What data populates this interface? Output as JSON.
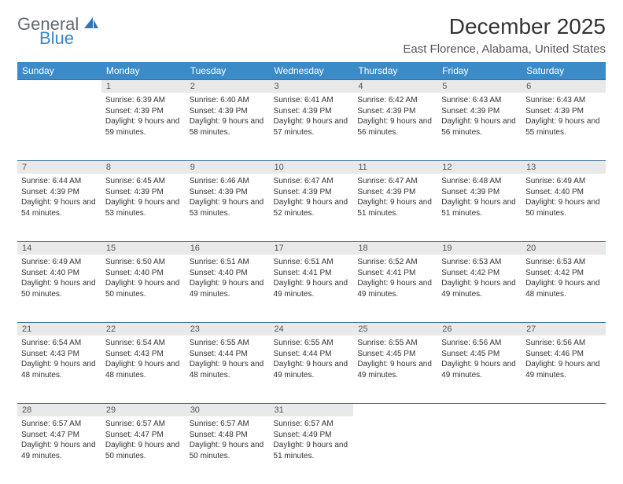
{
  "logo": {
    "word1": "General",
    "word2": "Blue",
    "color1": "#616b73",
    "color2": "#3a86c8"
  },
  "title": "December 2025",
  "location": "East Florence, Alabama, United States",
  "header_bg": "#3b8bc9",
  "rule_color": "#3b6f9e",
  "daynum_bg": "#e9e9e9",
  "weekdays": [
    "Sunday",
    "Monday",
    "Tuesday",
    "Wednesday",
    "Thursday",
    "Friday",
    "Saturday"
  ],
  "weeks": [
    [
      {
        "n": "",
        "sunrise": "",
        "sunset": "",
        "daylight": ""
      },
      {
        "n": "1",
        "sunrise": "Sunrise: 6:39 AM",
        "sunset": "Sunset: 4:39 PM",
        "daylight": "Daylight: 9 hours and 59 minutes."
      },
      {
        "n": "2",
        "sunrise": "Sunrise: 6:40 AM",
        "sunset": "Sunset: 4:39 PM",
        "daylight": "Daylight: 9 hours and 58 minutes."
      },
      {
        "n": "3",
        "sunrise": "Sunrise: 6:41 AM",
        "sunset": "Sunset: 4:39 PM",
        "daylight": "Daylight: 9 hours and 57 minutes."
      },
      {
        "n": "4",
        "sunrise": "Sunrise: 6:42 AM",
        "sunset": "Sunset: 4:39 PM",
        "daylight": "Daylight: 9 hours and 56 minutes."
      },
      {
        "n": "5",
        "sunrise": "Sunrise: 6:43 AM",
        "sunset": "Sunset: 4:39 PM",
        "daylight": "Daylight: 9 hours and 56 minutes."
      },
      {
        "n": "6",
        "sunrise": "Sunrise: 6:43 AM",
        "sunset": "Sunset: 4:39 PM",
        "daylight": "Daylight: 9 hours and 55 minutes."
      }
    ],
    [
      {
        "n": "7",
        "sunrise": "Sunrise: 6:44 AM",
        "sunset": "Sunset: 4:39 PM",
        "daylight": "Daylight: 9 hours and 54 minutes."
      },
      {
        "n": "8",
        "sunrise": "Sunrise: 6:45 AM",
        "sunset": "Sunset: 4:39 PM",
        "daylight": "Daylight: 9 hours and 53 minutes."
      },
      {
        "n": "9",
        "sunrise": "Sunrise: 6:46 AM",
        "sunset": "Sunset: 4:39 PM",
        "daylight": "Daylight: 9 hours and 53 minutes."
      },
      {
        "n": "10",
        "sunrise": "Sunrise: 6:47 AM",
        "sunset": "Sunset: 4:39 PM",
        "daylight": "Daylight: 9 hours and 52 minutes."
      },
      {
        "n": "11",
        "sunrise": "Sunrise: 6:47 AM",
        "sunset": "Sunset: 4:39 PM",
        "daylight": "Daylight: 9 hours and 51 minutes."
      },
      {
        "n": "12",
        "sunrise": "Sunrise: 6:48 AM",
        "sunset": "Sunset: 4:39 PM",
        "daylight": "Daylight: 9 hours and 51 minutes."
      },
      {
        "n": "13",
        "sunrise": "Sunrise: 6:49 AM",
        "sunset": "Sunset: 4:40 PM",
        "daylight": "Daylight: 9 hours and 50 minutes."
      }
    ],
    [
      {
        "n": "14",
        "sunrise": "Sunrise: 6:49 AM",
        "sunset": "Sunset: 4:40 PM",
        "daylight": "Daylight: 9 hours and 50 minutes."
      },
      {
        "n": "15",
        "sunrise": "Sunrise: 6:50 AM",
        "sunset": "Sunset: 4:40 PM",
        "daylight": "Daylight: 9 hours and 50 minutes."
      },
      {
        "n": "16",
        "sunrise": "Sunrise: 6:51 AM",
        "sunset": "Sunset: 4:40 PM",
        "daylight": "Daylight: 9 hours and 49 minutes."
      },
      {
        "n": "17",
        "sunrise": "Sunrise: 6:51 AM",
        "sunset": "Sunset: 4:41 PM",
        "daylight": "Daylight: 9 hours and 49 minutes."
      },
      {
        "n": "18",
        "sunrise": "Sunrise: 6:52 AM",
        "sunset": "Sunset: 4:41 PM",
        "daylight": "Daylight: 9 hours and 49 minutes."
      },
      {
        "n": "19",
        "sunrise": "Sunrise: 6:53 AM",
        "sunset": "Sunset: 4:42 PM",
        "daylight": "Daylight: 9 hours and 49 minutes."
      },
      {
        "n": "20",
        "sunrise": "Sunrise: 6:53 AM",
        "sunset": "Sunset: 4:42 PM",
        "daylight": "Daylight: 9 hours and 48 minutes."
      }
    ],
    [
      {
        "n": "21",
        "sunrise": "Sunrise: 6:54 AM",
        "sunset": "Sunset: 4:43 PM",
        "daylight": "Daylight: 9 hours and 48 minutes."
      },
      {
        "n": "22",
        "sunrise": "Sunrise: 6:54 AM",
        "sunset": "Sunset: 4:43 PM",
        "daylight": "Daylight: 9 hours and 48 minutes."
      },
      {
        "n": "23",
        "sunrise": "Sunrise: 6:55 AM",
        "sunset": "Sunset: 4:44 PM",
        "daylight": "Daylight: 9 hours and 48 minutes."
      },
      {
        "n": "24",
        "sunrise": "Sunrise: 6:55 AM",
        "sunset": "Sunset: 4:44 PM",
        "daylight": "Daylight: 9 hours and 49 minutes."
      },
      {
        "n": "25",
        "sunrise": "Sunrise: 6:55 AM",
        "sunset": "Sunset: 4:45 PM",
        "daylight": "Daylight: 9 hours and 49 minutes."
      },
      {
        "n": "26",
        "sunrise": "Sunrise: 6:56 AM",
        "sunset": "Sunset: 4:45 PM",
        "daylight": "Daylight: 9 hours and 49 minutes."
      },
      {
        "n": "27",
        "sunrise": "Sunrise: 6:56 AM",
        "sunset": "Sunset: 4:46 PM",
        "daylight": "Daylight: 9 hours and 49 minutes."
      }
    ],
    [
      {
        "n": "28",
        "sunrise": "Sunrise: 6:57 AM",
        "sunset": "Sunset: 4:47 PM",
        "daylight": "Daylight: 9 hours and 49 minutes."
      },
      {
        "n": "29",
        "sunrise": "Sunrise: 6:57 AM",
        "sunset": "Sunset: 4:47 PM",
        "daylight": "Daylight: 9 hours and 50 minutes."
      },
      {
        "n": "30",
        "sunrise": "Sunrise: 6:57 AM",
        "sunset": "Sunset: 4:48 PM",
        "daylight": "Daylight: 9 hours and 50 minutes."
      },
      {
        "n": "31",
        "sunrise": "Sunrise: 6:57 AM",
        "sunset": "Sunset: 4:49 PM",
        "daylight": "Daylight: 9 hours and 51 minutes."
      },
      {
        "n": "",
        "sunrise": "",
        "sunset": "",
        "daylight": ""
      },
      {
        "n": "",
        "sunrise": "",
        "sunset": "",
        "daylight": ""
      },
      {
        "n": "",
        "sunrise": "",
        "sunset": "",
        "daylight": ""
      }
    ]
  ]
}
